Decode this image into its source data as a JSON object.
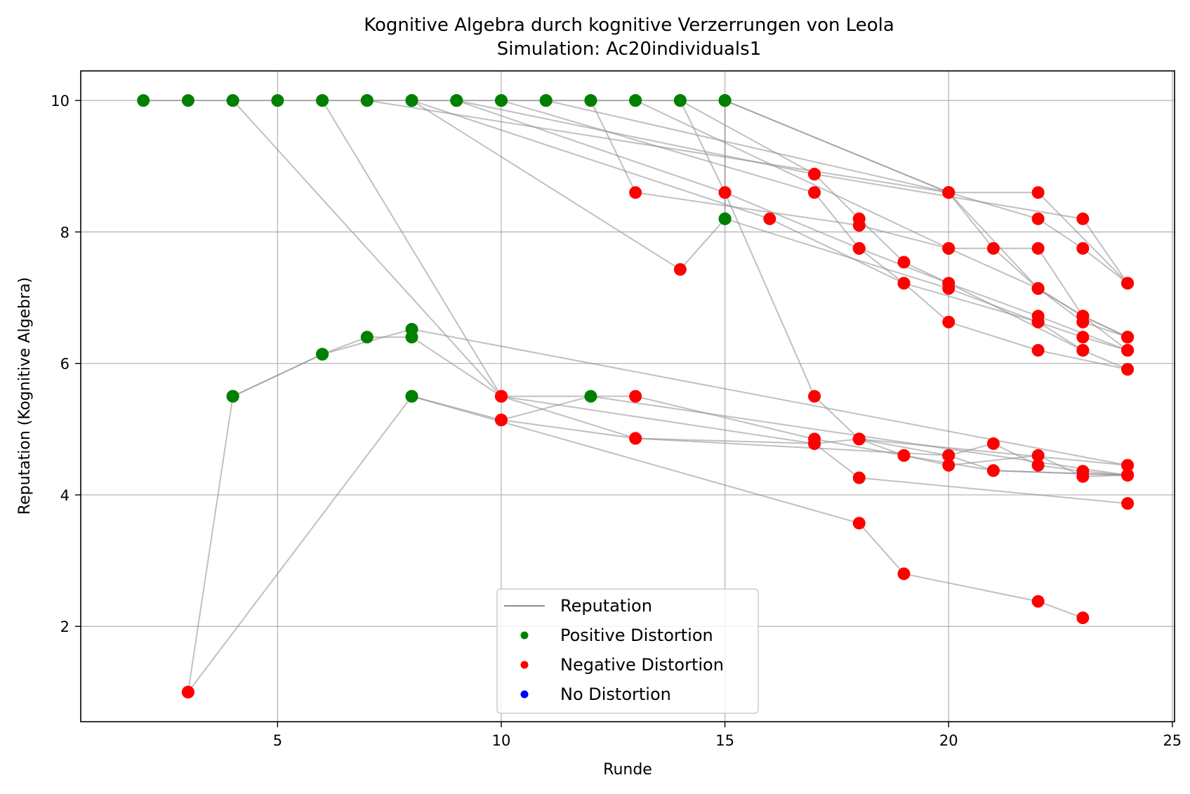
{
  "chart_data": {
    "type": "scatter",
    "title": "Kognitive Algebra durch kognitive Verzerrungen von Leola",
    "subtitle": "Simulation: Ac20individuals1",
    "xlabel": "Runde",
    "ylabel": "Reputation (Kognitive Algebra)",
    "xlim": [
      0.6,
      25.05
    ],
    "ylim": [
      0.55,
      10.45
    ],
    "x_ticks": [
      5,
      10,
      15,
      20,
      25
    ],
    "y_ticks": [
      2,
      4,
      6,
      8,
      10
    ],
    "grid": true,
    "legend_position": "lower center",
    "legend": [
      {
        "label": "Reputation",
        "kind": "line",
        "color": "#8c8c8c"
      },
      {
        "label": "Positive Distortion",
        "kind": "marker",
        "color": "#008000"
      },
      {
        "label": "Negative Distortion",
        "kind": "marker",
        "color": "#ff0000"
      },
      {
        "label": "No Distortion",
        "kind": "marker",
        "color": "#0000ff"
      }
    ],
    "colors": {
      "positive": "#008000",
      "negative": "#ff0000",
      "none": "#0000ff",
      "line": "#8c8c8c"
    },
    "series": [
      {
        "values": [
          [
            2,
            10,
            "p"
          ],
          [
            3,
            10,
            "p"
          ],
          [
            4,
            10,
            "p"
          ],
          [
            5,
            10,
            "p"
          ],
          [
            6,
            10,
            "p"
          ],
          [
            7,
            10,
            "p"
          ],
          [
            8,
            10,
            "p"
          ],
          [
            9,
            10,
            "p"
          ],
          [
            10,
            10,
            "p"
          ],
          [
            11,
            10,
            "p"
          ],
          [
            12,
            10,
            "p"
          ],
          [
            13,
            10,
            "p"
          ],
          [
            14,
            10,
            "p"
          ],
          [
            15,
            10,
            "p"
          ],
          [
            20,
            8.6,
            "n"
          ],
          [
            22,
            7.14,
            "n"
          ],
          [
            23,
            6.72,
            "n"
          ],
          [
            24,
            6.4,
            "n"
          ]
        ]
      },
      {
        "values": [
          [
            3,
            1.0,
            "n"
          ],
          [
            4,
            5.5,
            "p"
          ],
          [
            6,
            6.14,
            "p"
          ],
          [
            8,
            6.52,
            "p"
          ],
          [
            24,
            4.45,
            "n"
          ]
        ]
      },
      {
        "values": [
          [
            3,
            1.0,
            "n"
          ],
          [
            8,
            5.5,
            "p"
          ],
          [
            10,
            5.14,
            "n"
          ],
          [
            12,
            5.5,
            "p"
          ],
          [
            24,
            4.3,
            "n"
          ]
        ]
      },
      {
        "values": [
          [
            4,
            5.5,
            "p"
          ],
          [
            6,
            6.14,
            "p"
          ],
          [
            7,
            6.4,
            "p"
          ],
          [
            8,
            6.4,
            "p"
          ],
          [
            10,
            5.5,
            "n"
          ],
          [
            17,
            4.78,
            "n"
          ],
          [
            18,
            4.85,
            "n"
          ],
          [
            20,
            4.6,
            "n"
          ],
          [
            21,
            4.78,
            "n"
          ],
          [
            22,
            4.45,
            "n"
          ],
          [
            23,
            4.36,
            "n"
          ],
          [
            24,
            4.3,
            "n"
          ]
        ]
      },
      {
        "values": [
          [
            8,
            5.5,
            "p"
          ],
          [
            18,
            3.57,
            "n"
          ],
          [
            19,
            2.8,
            "n"
          ],
          [
            22,
            2.38,
            "n"
          ],
          [
            23,
            2.13,
            "n"
          ]
        ]
      },
      {
        "values": [
          [
            4,
            10,
            "p"
          ],
          [
            10,
            5.5,
            "n"
          ],
          [
            13,
            5.5,
            "n"
          ],
          [
            17,
            4.85,
            "n"
          ],
          [
            19,
            4.6,
            "n"
          ],
          [
            20,
            4.45,
            "n"
          ],
          [
            22,
            4.6,
            "n"
          ],
          [
            23,
            4.28,
            "n"
          ],
          [
            24,
            4.3,
            "n"
          ]
        ]
      },
      {
        "values": [
          [
            6,
            10,
            "p"
          ],
          [
            10,
            5.5,
            "n"
          ],
          [
            13,
            4.86,
            "n"
          ],
          [
            20,
            4.6,
            "n"
          ],
          [
            21,
            4.37,
            "n"
          ],
          [
            24,
            4.3,
            "n"
          ]
        ]
      },
      {
        "values": [
          [
            15,
            10,
            "p"
          ],
          [
            15,
            8.2,
            "p"
          ],
          [
            20,
            7.14,
            "n"
          ],
          [
            22,
            6.63,
            "n"
          ],
          [
            23,
            6.4,
            "n"
          ],
          [
            24,
            6.2,
            "n"
          ]
        ]
      },
      {
        "values": [
          [
            8,
            10,
            "p"
          ],
          [
            14,
            7.43,
            "n"
          ],
          [
            15,
            8.2,
            "p"
          ]
        ]
      },
      {
        "values": [
          [
            12,
            10,
            "p"
          ],
          [
            13,
            8.6,
            "n"
          ],
          [
            18,
            8.1,
            "n"
          ],
          [
            20,
            7.75,
            "n"
          ],
          [
            22,
            7.14,
            "n"
          ],
          [
            23,
            6.63,
            "n"
          ],
          [
            24,
            6.4,
            "n"
          ]
        ]
      },
      {
        "values": [
          [
            14,
            10,
            "p"
          ],
          [
            17,
            8.88,
            "n"
          ],
          [
            18,
            8.2,
            "n"
          ],
          [
            19,
            7.54,
            "n"
          ],
          [
            20,
            7.22,
            "n"
          ],
          [
            22,
            6.72,
            "n"
          ],
          [
            24,
            6.2,
            "n"
          ]
        ]
      },
      {
        "values": [
          [
            15,
            10,
            "p"
          ],
          [
            20,
            8.6,
            "n"
          ],
          [
            21,
            7.75,
            "n"
          ],
          [
            22,
            7.14,
            "n"
          ],
          [
            23,
            6.72,
            "n"
          ],
          [
            24,
            6.2,
            "n"
          ]
        ]
      },
      {
        "values": [
          [
            14,
            10,
            "p"
          ],
          [
            15,
            8.6,
            "n"
          ],
          [
            17,
            5.5,
            "n"
          ],
          [
            18,
            4.85,
            "n"
          ],
          [
            24,
            4.45,
            "n"
          ]
        ]
      },
      {
        "values": [
          [
            9,
            10,
            "p"
          ],
          [
            15,
            8.6,
            "n"
          ],
          [
            18,
            7.75,
            "n"
          ],
          [
            20,
            7.22,
            "n"
          ],
          [
            23,
            6.2,
            "n"
          ]
        ]
      },
      {
        "values": [
          [
            10,
            10,
            "p"
          ],
          [
            17,
            8.6,
            "n"
          ],
          [
            18,
            7.75,
            "n"
          ],
          [
            19,
            7.22,
            "n"
          ],
          [
            22,
            6.63,
            "n"
          ],
          [
            23,
            6.2,
            "n"
          ],
          [
            24,
            5.91,
            "n"
          ]
        ]
      },
      {
        "values": [
          [
            11,
            10,
            "p"
          ],
          [
            20,
            8.6,
            "n"
          ],
          [
            22,
            8.2,
            "n"
          ],
          [
            23,
            7.75,
            "n"
          ],
          [
            24,
            7.22,
            "n"
          ]
        ]
      },
      {
        "values": [
          [
            7,
            10,
            "p"
          ],
          [
            20,
            8.6,
            "n"
          ],
          [
            22,
            8.6,
            "n"
          ],
          [
            24,
            7.22,
            "n"
          ]
        ]
      },
      {
        "values": [
          [
            8,
            10,
            "p"
          ],
          [
            16,
            8.2,
            "n"
          ],
          [
            19,
            7.22,
            "n"
          ],
          [
            20,
            6.63,
            "n"
          ],
          [
            22,
            6.2,
            "n"
          ],
          [
            24,
            5.91,
            "n"
          ]
        ]
      },
      {
        "values": [
          [
            9,
            10,
            "p"
          ],
          [
            17,
            8.88,
            "n"
          ],
          [
            23,
            8.2,
            "n"
          ],
          [
            24,
            7.22,
            "n"
          ]
        ]
      },
      {
        "values": [
          [
            13,
            10,
            "p"
          ],
          [
            20,
            7.75,
            "n"
          ],
          [
            22,
            7.75,
            "n"
          ],
          [
            23,
            6.72,
            "n"
          ],
          [
            24,
            6.4,
            "n"
          ]
        ]
      },
      {
        "values": [
          [
            10,
            5.14,
            "n"
          ],
          [
            13,
            4.86,
            "n"
          ],
          [
            17,
            4.78,
            "n"
          ],
          [
            18,
            4.26,
            "n"
          ],
          [
            24,
            3.87,
            "n"
          ]
        ]
      },
      {
        "values": [
          [
            18,
            4.85,
            "n"
          ],
          [
            19,
            4.6,
            "n"
          ],
          [
            21,
            4.37,
            "n"
          ],
          [
            24,
            4.3,
            "n"
          ]
        ]
      }
    ]
  }
}
